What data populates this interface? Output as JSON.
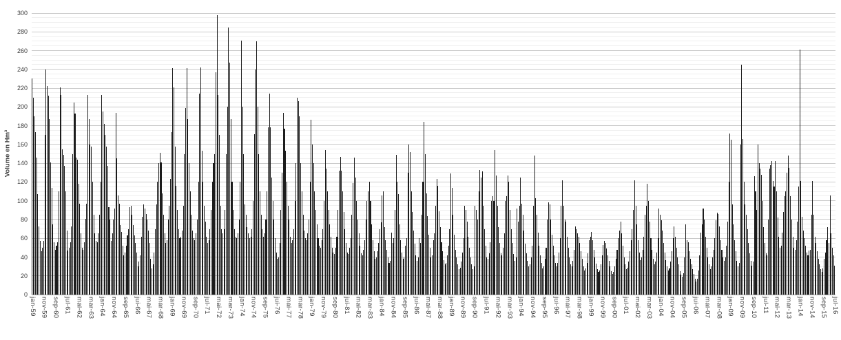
{
  "chart_data": {
    "type": "bar",
    "title": "",
    "ylabel": "Volume en Hm³",
    "xlabel": "",
    "ylim": [
      0,
      300
    ],
    "y_tick_interval": 20,
    "y_minor_gridline_interval": 5,
    "y_tick_labels": [
      "0",
      "20",
      "40",
      "60",
      "80",
      "100",
      "120",
      "140",
      "160",
      "180",
      "200",
      "220",
      "240",
      "260",
      "280",
      "300"
    ],
    "grid": "horizontal",
    "legend": "none",
    "bar_color": "#1c1c1c",
    "x_frequency": "monthly",
    "x_start": "jan-59",
    "x_end": "jul-16",
    "x_tick_spacing_months": 10,
    "x_tick_labels": [
      "jan-59",
      "nov-59",
      "sep-60",
      "jul-61",
      "mai-62",
      "mar-63",
      "jan-64",
      "nov-64",
      "sep-65",
      "jui-66",
      "mai-67",
      "mar-68",
      "jan-69",
      "nov-69",
      "sep-70",
      "jul-71",
      "mai-72",
      "mar-73",
      "jan-74",
      "nov-74",
      "sep-75",
      "jui-76",
      "mai-77",
      "mar-78",
      "jan-79",
      "nov-79",
      "sep-80",
      "jui-81",
      "mai-82",
      "mar-83",
      "jan-84",
      "nov-84",
      "sep-85",
      "jui-86",
      "mai-87",
      "mar-88",
      "jan-89",
      "nov-89",
      "sep-90",
      "jui-91",
      "mai-92",
      "mar-93",
      "jan-94",
      "nov-94",
      "sep-95",
      "jui-96",
      "mai-97",
      "mar-98",
      "jan-99",
      "nov-99",
      "sep-00",
      "jul-01",
      "mai-02",
      "mar-03",
      "jan-04",
      "nov-04",
      "sep-05",
      "jui-06",
      "mai-07",
      "mar-08",
      "jan-09",
      "nov-09",
      "sep-10",
      "jul-11",
      "mai-12",
      "mar-13",
      "jan-14",
      "nov-14",
      "sep-15",
      "jul-16"
    ],
    "monthly_values_by_year": [
      {
        "year": 1959,
        "values": [
          230,
          210,
          190,
          173,
          146,
          107,
          73,
          57,
          46,
          50,
          57,
          170
        ]
      },
      {
        "year": 1960,
        "values": [
          240,
          222,
          212,
          187,
          141,
          114,
          75,
          56,
          48,
          52,
          56,
          110
        ]
      },
      {
        "year": 1961,
        "values": [
          221,
          213,
          155,
          149,
          137,
          110,
          68,
          47,
          50,
          56,
          73,
          150
        ]
      },
      {
        "year": 1962,
        "values": [
          205,
          193,
          146,
          144,
          118,
          97,
          65,
          50,
          48,
          56,
          81,
          97
        ]
      },
      {
        "year": 1963,
        "values": [
          213,
          187,
          160,
          158,
          120,
          85,
          65,
          57,
          56,
          65,
          85,
          120
        ]
      },
      {
        "year": 1964,
        "values": [
          213,
          195,
          182,
          170,
          158,
          137,
          93,
          80,
          57,
          65,
          80,
          92
        ]
      },
      {
        "year": 1965,
        "values": [
          194,
          145,
          106,
          97,
          74,
          67,
          52,
          42,
          45,
          52,
          63,
          70
        ]
      },
      {
        "year": 1966,
        "values": [
          93,
          95,
          85,
          74,
          63,
          55,
          45,
          30,
          35,
          42,
          62,
          83
        ]
      },
      {
        "year": 1967,
        "values": [
          96,
          92,
          86,
          80,
          68,
          55,
          38,
          28,
          32,
          45,
          70,
          96
        ]
      },
      {
        "year": 1968,
        "values": [
          120,
          140,
          151,
          141,
          108,
          85,
          65,
          55,
          58,
          80,
          95,
          123
        ]
      },
      {
        "year": 1969,
        "values": [
          173,
          241,
          221,
          158,
          116,
          90,
          70,
          60,
          62,
          68,
          95,
          150
        ]
      },
      {
        "year": 1970,
        "values": [
          199,
          241,
          187,
          140,
          110,
          85,
          68,
          60,
          58,
          65,
          80,
          120
        ]
      },
      {
        "year": 1971,
        "values": [
          214,
          242,
          153,
          120,
          95,
          78,
          62,
          55,
          58,
          70,
          90,
          120
        ]
      },
      {
        "year": 1972,
        "values": [
          140,
          150,
          237,
          298,
          213,
          170,
          95,
          70,
          65,
          70,
          90,
          150
        ]
      },
      {
        "year": 1973,
        "values": [
          200,
          285,
          247,
          187,
          120,
          90,
          70,
          62,
          60,
          65,
          80,
          120
        ]
      },
      {
        "year": 1974,
        "values": [
          271,
          200,
          150,
          96,
          85,
          72,
          65,
          60,
          62,
          70,
          100,
          171
        ]
      },
      {
        "year": 1975,
        "values": [
          240,
          270,
          200,
          150,
          110,
          85,
          70,
          62,
          65,
          80,
          110,
          178
        ]
      },
      {
        "year": 1976,
        "values": [
          214,
          178,
          125,
          100,
          80,
          60,
          45,
          38,
          40,
          55,
          90,
          130
        ]
      },
      {
        "year": 1977,
        "values": [
          194,
          177,
          153,
          120,
          95,
          80,
          62,
          55,
          58,
          70,
          100,
          140
        ]
      },
      {
        "year": 1978,
        "values": [
          210,
          206,
          190,
          140,
          110,
          85,
          68,
          60,
          58,
          65,
          80,
          120
        ]
      },
      {
        "year": 1979,
        "values": [
          186,
          160,
          140,
          110,
          90,
          75,
          60,
          52,
          50,
          58,
          70,
          100
        ]
      },
      {
        "year": 1980,
        "values": [
          154,
          134,
          110,
          90,
          75,
          62,
          50,
          45,
          43,
          50,
          62,
          90
        ]
      },
      {
        "year": 1981,
        "values": [
          132,
          147,
          132,
          110,
          88,
          70,
          55,
          45,
          43,
          50,
          60,
          85
        ]
      },
      {
        "year": 1982,
        "values": [
          119,
          146,
          125,
          100,
          80,
          65,
          52,
          44,
          42,
          48,
          58,
          80
        ]
      },
      {
        "year": 1983,
        "values": [
          100,
          110,
          120,
          100,
          75,
          58,
          46,
          38,
          40,
          46,
          55,
          70
        ]
      },
      {
        "year": 1984,
        "values": [
          77,
          106,
          110,
          72,
          58,
          48,
          40,
          34,
          36,
          66,
          55,
          60
        ]
      },
      {
        "year": 1985,
        "values": [
          90,
          149,
          120,
          107,
          75,
          58,
          45,
          38,
          40,
          52,
          60,
          130
        ]
      },
      {
        "year": 1986,
        "values": [
          160,
          152,
          110,
          88,
          68,
          54,
          42,
          36,
          40,
          60,
          55,
          85
        ]
      },
      {
        "year": 1987,
        "values": [
          120,
          184,
          150,
          108,
          84,
          64,
          50,
          40,
          42,
          58,
          65,
          95
        ]
      },
      {
        "year": 1988,
        "values": [
          123,
          116,
          89,
          72,
          56,
          46,
          37,
          32,
          34,
          42,
          52,
          70
        ]
      },
      {
        "year": 1989,
        "values": [
          129,
          114,
          85,
          64,
          48,
          40,
          32,
          27,
          29,
          35,
          45,
          60
        ]
      },
      {
        "year": 1990,
        "values": [
          95,
          90,
          78,
          62,
          50,
          40,
          32,
          27,
          30,
          95,
          90,
          80
        ]
      },
      {
        "year": 1991,
        "values": [
          110,
          133,
          125,
          131,
          95,
          70,
          52,
          40,
          38,
          44,
          56,
          100
        ]
      },
      {
        "year": 1992,
        "values": [
          105,
          100,
          154,
          127,
          95,
          72,
          55,
          44,
          42,
          50,
          65,
          100
        ]
      },
      {
        "year": 1993,
        "values": [
          105,
          127,
          120,
          90,
          70,
          55,
          43,
          36,
          40,
          92,
          78,
          95
        ]
      },
      {
        "year": 1994,
        "values": [
          125,
          97,
          85,
          68,
          54,
          44,
          36,
          30,
          32,
          40,
          52,
          95
        ]
      },
      {
        "year": 1995,
        "values": [
          148,
          103,
          85,
          66,
          52,
          42,
          34,
          28,
          30,
          38,
          50,
          80
        ]
      },
      {
        "year": 1996,
        "values": [
          98,
          96,
          80,
          64,
          52,
          42,
          34,
          30,
          34,
          45,
          60,
          95
        ]
      },
      {
        "year": 1997,
        "values": [
          122,
          95,
          80,
          78,
          62,
          50,
          40,
          32,
          30,
          36,
          48,
          73
        ]
      },
      {
        "year": 1998,
        "values": [
          70,
          65,
          62,
          55,
          46,
          38,
          30,
          26,
          28,
          34,
          44,
          58
        ]
      },
      {
        "year": 1999,
        "values": [
          62,
          67,
          58,
          48,
          40,
          33,
          27,
          24,
          26,
          32,
          42,
          53
        ]
      },
      {
        "year": 2000,
        "values": [
          57,
          55,
          49,
          42,
          36,
          30,
          25,
          22,
          24,
          30,
          38,
          48
        ]
      },
      {
        "year": 2001,
        "values": [
          60,
          68,
          78,
          65,
          52,
          40,
          32,
          27,
          29,
          35,
          46,
          58
        ]
      },
      {
        "year": 2002,
        "values": [
          70,
          90,
          122,
          95,
          75,
          58,
          45,
          37,
          40,
          48,
          62,
          85
        ]
      },
      {
        "year": 2003,
        "values": [
          95,
          118,
          100,
          78,
          60,
          48,
          38,
          32,
          35,
          45,
          60,
          92
        ]
      },
      {
        "year": 2004,
        "values": [
          85,
          79,
          68,
          55,
          45,
          37,
          30,
          26,
          28,
          35,
          46,
          60
        ]
      },
      {
        "year": 2005,
        "values": [
          73,
          62,
          50,
          40,
          32,
          25,
          21,
          19,
          23,
          40,
          75,
          58
        ]
      },
      {
        "year": 2006,
        "values": [
          56,
          46,
          38,
          32,
          27,
          22,
          17,
          14,
          17,
          26,
          42,
          66
        ]
      },
      {
        "year": 2007,
        "values": [
          75,
          92,
          80,
          62,
          50,
          40,
          32,
          27,
          30,
          40,
          48,
          60
        ]
      },
      {
        "year": 2008,
        "values": [
          79,
          87,
          86,
          73,
          58,
          48,
          40,
          36,
          40,
          52,
          78,
          120
        ]
      },
      {
        "year": 2009,
        "values": [
          172,
          165,
          96,
          75,
          58,
          46,
          36,
          30,
          34,
          160,
          245,
          166
        ]
      },
      {
        "year": 2010,
        "values": [
          120,
          96,
          85,
          70,
          55,
          44,
          36,
          31,
          35,
          126,
          110,
          90
        ]
      },
      {
        "year": 2011,
        "values": [
          160,
          140,
          134,
          128,
          100,
          72,
          55,
          44,
          42,
          80,
          134,
          138
        ]
      },
      {
        "year": 2012,
        "values": [
          142,
          121,
          115,
          142,
          110,
          82,
          62,
          50,
          52,
          66,
          88,
          105
        ]
      },
      {
        "year": 2013,
        "values": [
          110,
          130,
          148,
          135,
          105,
          80,
          62,
          50,
          48,
          58,
          78,
          115
        ]
      },
      {
        "year": 2014,
        "values": [
          261,
          121,
          83,
          68,
          60,
          52,
          45,
          42,
          47,
          48,
          85,
          121
        ]
      },
      {
        "year": 2015,
        "values": [
          85,
          62,
          55,
          46,
          38,
          32,
          27,
          24,
          28,
          38,
          45,
          58
        ]
      },
      {
        "year": 2016,
        "values": [
          72,
          55,
          106,
          65,
          50,
          42,
          31
        ]
      }
    ]
  }
}
